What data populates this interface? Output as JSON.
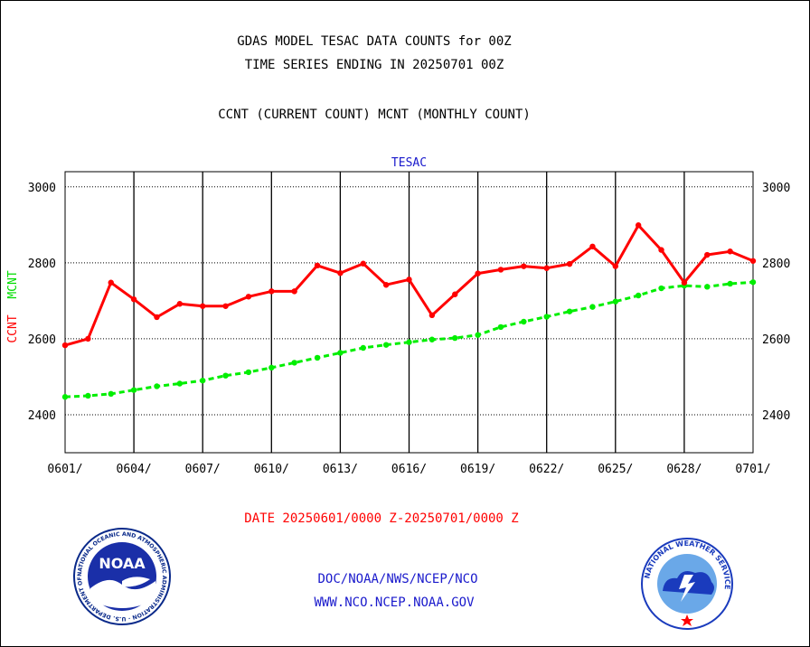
{
  "header": {
    "line1": "GDAS MODEL TESAC DATA COUNTS for 00Z",
    "line2": "TIME SERIES ENDING IN 20250701 00Z",
    "line3": "CCNT (CURRENT COUNT) MCNT (MONTHLY COUNT)"
  },
  "chart_data": {
    "type": "line",
    "title": "TESAC",
    "xlabel": "DATE 20250601/0000 Z-20250701/0000 Z",
    "ylabel_ccnt": "CCNT",
    "ylabel_mcnt": "MCNT",
    "ylim": [
      2300,
      3040
    ],
    "yticks": [
      2400,
      2600,
      2800,
      3000
    ],
    "xtick_labels": [
      "0601/",
      "0604/",
      "0607/",
      "0610/",
      "0613/",
      "0616/",
      "0619/",
      "0622/",
      "0625/",
      "0628/",
      "0701/"
    ],
    "x": [
      "0601",
      "0602",
      "0603",
      "0604",
      "0605",
      "0606",
      "0607",
      "0608",
      "0609",
      "0610",
      "0611",
      "0612",
      "0613",
      "0614",
      "0615",
      "0616",
      "0617",
      "0618",
      "0619",
      "0620",
      "0621",
      "0622",
      "0623",
      "0624",
      "0625",
      "0626",
      "0627",
      "0628",
      "0629",
      "0630",
      "0701"
    ],
    "grid": true,
    "series": [
      {
        "name": "CCNT",
        "color": "#ff0000",
        "style": "solid",
        "values": [
          2583,
          2600,
          2748,
          2704,
          2657,
          2692,
          2686,
          2686,
          2711,
          2725,
          2725,
          2793,
          2773,
          2798,
          2742,
          2756,
          2662,
          2717,
          2772,
          2782,
          2791,
          2786,
          2797,
          2843,
          2791,
          2899,
          2834,
          2748,
          2821,
          2830,
          2805
        ]
      },
      {
        "name": "MCNT",
        "color": "#00ee00",
        "style": "dashed",
        "values": [
          2447,
          2450,
          2455,
          2465,
          2475,
          2482,
          2490,
          2503,
          2512,
          2524,
          2537,
          2550,
          2563,
          2576,
          2584,
          2591,
          2598,
          2602,
          2610,
          2631,
          2645,
          2658,
          2672,
          2684,
          2698,
          2714,
          2733,
          2740,
          2737,
          2745,
          2749
        ]
      }
    ]
  },
  "footer": {
    "org_line": "DOC/NOAA/NWS/NCEP/NCO",
    "url_line": "WWW.NCO.NCEP.NOAA.GOV",
    "noaa_logo_text": "NOAA",
    "noaa_ring_text": "NATIONAL OCEANIC AND ATMOSPHERIC ADMINISTRATION · U.S. DEPARTMENT OF COMMERCE",
    "nws_ring_text": "NATIONAL WEATHER SERVICE"
  }
}
